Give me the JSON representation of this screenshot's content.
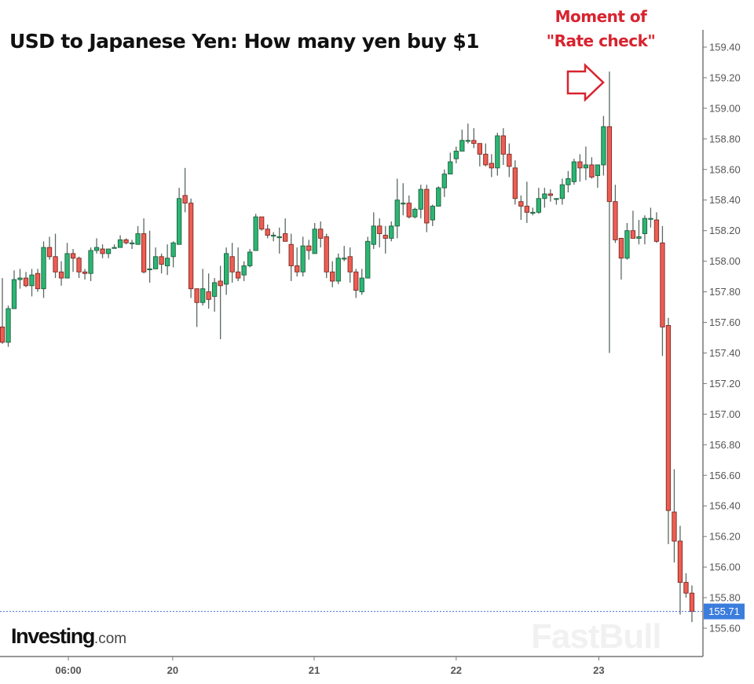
{
  "chart_data": {
    "type": "candlestick",
    "title": "USD to Japanese Yen: How many yen buy $1",
    "annotation": {
      "line1": "Moment of",
      "line2": "\"Rate check\"",
      "candle_index": 103
    },
    "source_logo": {
      "brand": "Investing",
      "suffix": ".com"
    },
    "watermark": "FastBull",
    "ylim": [
      155.42,
      159.51
    ],
    "y_ticks": [
      "159.40",
      "159.20",
      "159.00",
      "158.80",
      "158.60",
      "158.40",
      "158.20",
      "158.00",
      "157.80",
      "157.60",
      "157.40",
      "157.20",
      "157.00",
      "156.80",
      "156.60",
      "156.40",
      "156.20",
      "156.00",
      "155.80",
      "155.60"
    ],
    "x_ticks": [
      {
        "label": "06:00",
        "index": 11.2
      },
      {
        "label": "20",
        "index": 28.9
      },
      {
        "label": "21",
        "index": 52.9
      },
      {
        "label": "22",
        "index": 77
      },
      {
        "label": "23",
        "index": 101.2
      }
    ],
    "last_price": "155.71",
    "colors": {
      "up": "#2bb673",
      "down": "#ee5d52",
      "last_price_bg": "#3b7ddd",
      "annotation": "#d8232f"
    },
    "ohlc_format": "[open, high, low, close]",
    "candles": [
      [
        157.57,
        157.89,
        157.46,
        157.47
      ],
      [
        157.47,
        157.71,
        157.44,
        157.69
      ],
      [
        157.69,
        157.94,
        157.69,
        157.88
      ],
      [
        157.88,
        157.95,
        157.82,
        157.89
      ],
      [
        157.89,
        157.93,
        157.83,
        157.84
      ],
      [
        157.84,
        157.95,
        157.77,
        157.91
      ],
      [
        157.92,
        157.95,
        157.8,
        157.82
      ],
      [
        157.82,
        158.13,
        157.76,
        158.09
      ],
      [
        158.09,
        158.16,
        158.01,
        158.03
      ],
      [
        158.03,
        158.18,
        157.89,
        157.93
      ],
      [
        157.93,
        158.0,
        157.84,
        157.89
      ],
      [
        157.89,
        158.12,
        157.89,
        158.05
      ],
      [
        158.05,
        158.08,
        157.93,
        158.02
      ],
      [
        158.02,
        158.03,
        157.89,
        157.93
      ],
      [
        157.93,
        157.95,
        157.88,
        157.92
      ],
      [
        157.92,
        158.09,
        157.87,
        158.07
      ],
      [
        158.07,
        158.15,
        158.05,
        158.09
      ],
      [
        158.08,
        158.11,
        158.02,
        158.05
      ],
      [
        158.05,
        158.08,
        158.02,
        158.08
      ],
      [
        158.09,
        158.11,
        158.09,
        158.09
      ],
      [
        158.09,
        158.17,
        158.09,
        158.14
      ],
      [
        158.14,
        158.15,
        158.11,
        158.12
      ],
      [
        158.12,
        158.14,
        158.08,
        158.12
      ],
      [
        158.11,
        158.23,
        158.11,
        158.18
      ],
      [
        158.18,
        158.28,
        157.92,
        157.93
      ],
      [
        157.95,
        158.2,
        157.86,
        157.95
      ],
      [
        157.95,
        158.09,
        157.95,
        158.03
      ],
      [
        158.03,
        158.05,
        157.92,
        157.98
      ],
      [
        157.97,
        158.11,
        157.91,
        158.02
      ],
      [
        158.03,
        158.13,
        157.96,
        158.12
      ],
      [
        158.11,
        158.48,
        158.11,
        158.41
      ],
      [
        158.43,
        158.61,
        158.32,
        158.38
      ],
      [
        158.38,
        158.41,
        157.76,
        157.82
      ],
      [
        157.82,
        157.82,
        157.57,
        157.73
      ],
      [
        157.73,
        157.95,
        157.71,
        157.82
      ],
      [
        157.8,
        157.92,
        157.69,
        157.75
      ],
      [
        157.77,
        157.89,
        157.67,
        157.86
      ],
      [
        157.87,
        157.97,
        157.49,
        157.84
      ],
      [
        157.85,
        158.09,
        157.78,
        158.05
      ],
      [
        158.03,
        158.12,
        157.86,
        157.93
      ],
      [
        157.93,
        158.09,
        157.87,
        157.89
      ],
      [
        157.91,
        158.0,
        157.87,
        157.97
      ],
      [
        157.97,
        158.08,
        157.96,
        158.06
      ],
      [
        158.07,
        158.31,
        158.07,
        158.29
      ],
      [
        158.29,
        158.29,
        158.2,
        158.21
      ],
      [
        158.21,
        158.24,
        158.15,
        158.17
      ],
      [
        158.17,
        158.19,
        158.13,
        158.17
      ],
      [
        158.16,
        158.22,
        158.05,
        158.16
      ],
      [
        158.18,
        158.28,
        158.13,
        158.13
      ],
      [
        158.11,
        158.18,
        157.87,
        157.97
      ],
      [
        157.97,
        158.09,
        157.9,
        157.93
      ],
      [
        157.93,
        158.16,
        157.9,
        158.1
      ],
      [
        158.1,
        158.14,
        158.01,
        158.07
      ],
      [
        158.05,
        158.25,
        158.05,
        158.21
      ],
      [
        158.21,
        158.26,
        158.09,
        158.15
      ],
      [
        158.16,
        158.18,
        157.89,
        157.93
      ],
      [
        157.93,
        158.0,
        157.83,
        157.87
      ],
      [
        157.87,
        158.05,
        157.85,
        158.02
      ],
      [
        158.02,
        158.1,
        158.0,
        158.02
      ],
      [
        158.03,
        158.09,
        157.86,
        157.93
      ],
      [
        157.93,
        157.95,
        157.76,
        157.81
      ],
      [
        157.8,
        157.95,
        157.78,
        157.89
      ],
      [
        157.89,
        158.16,
        157.89,
        158.13
      ],
      [
        158.11,
        158.32,
        158.08,
        158.23
      ],
      [
        158.23,
        158.28,
        158.09,
        158.18
      ],
      [
        158.17,
        158.23,
        158.05,
        158.15
      ],
      [
        158.15,
        158.26,
        158.13,
        158.23
      ],
      [
        158.23,
        158.54,
        158.15,
        158.4
      ],
      [
        158.38,
        158.51,
        158.3,
        158.38
      ],
      [
        158.38,
        158.43,
        158.28,
        158.29
      ],
      [
        158.29,
        158.35,
        158.28,
        158.34
      ],
      [
        158.34,
        158.5,
        158.28,
        158.47
      ],
      [
        158.47,
        158.5,
        158.19,
        158.25
      ],
      [
        158.27,
        158.37,
        158.23,
        158.36
      ],
      [
        158.36,
        158.49,
        158.36,
        158.48
      ],
      [
        158.48,
        158.6,
        158.42,
        158.57
      ],
      [
        158.57,
        158.71,
        158.57,
        158.65
      ],
      [
        158.67,
        158.75,
        158.64,
        158.72
      ],
      [
        158.72,
        158.86,
        158.72,
        158.79
      ],
      [
        158.79,
        158.9,
        158.77,
        158.79
      ],
      [
        158.79,
        158.87,
        158.74,
        158.77
      ],
      [
        158.77,
        158.77,
        158.62,
        158.7
      ],
      [
        158.7,
        158.77,
        158.62,
        158.63
      ],
      [
        158.64,
        158.7,
        158.55,
        158.61
      ],
      [
        158.61,
        158.84,
        158.56,
        158.82
      ],
      [
        158.82,
        158.87,
        158.63,
        158.7
      ],
      [
        158.7,
        158.77,
        158.55,
        158.62
      ],
      [
        158.61,
        158.66,
        158.37,
        158.41
      ],
      [
        158.39,
        158.43,
        158.27,
        158.36
      ],
      [
        158.36,
        158.52,
        158.25,
        158.32
      ],
      [
        158.32,
        158.35,
        158.3,
        158.32
      ],
      [
        158.32,
        158.48,
        158.31,
        158.41
      ],
      [
        158.41,
        158.48,
        158.35,
        158.44
      ],
      [
        158.44,
        158.47,
        158.39,
        158.43
      ],
      [
        158.41,
        158.41,
        158.37,
        158.41
      ],
      [
        158.41,
        158.54,
        158.37,
        158.5
      ],
      [
        158.5,
        158.59,
        158.45,
        158.54
      ],
      [
        158.52,
        158.67,
        158.5,
        158.65
      ],
      [
        158.65,
        158.7,
        158.52,
        158.61
      ],
      [
        158.61,
        158.75,
        158.53,
        158.63
      ],
      [
        158.63,
        158.68,
        158.54,
        158.55
      ],
      [
        158.56,
        158.63,
        158.48,
        158.63
      ],
      [
        158.63,
        158.95,
        158.56,
        158.88
      ],
      [
        158.88,
        159.24,
        157.4,
        158.39
      ],
      [
        158.39,
        158.5,
        158.12,
        158.14
      ],
      [
        158.15,
        158.15,
        157.88,
        158.02
      ],
      [
        158.02,
        158.25,
        158.01,
        158.2
      ],
      [
        158.2,
        158.33,
        158.15,
        158.15
      ],
      [
        158.15,
        158.27,
        158.11,
        158.16
      ],
      [
        158.18,
        158.3,
        158.11,
        158.28
      ],
      [
        158.28,
        158.35,
        158.22,
        158.28
      ],
      [
        158.27,
        158.32,
        158.12,
        158.13
      ],
      [
        158.12,
        158.23,
        157.38,
        157.57
      ],
      [
        157.58,
        157.63,
        156.15,
        156.37
      ],
      [
        156.36,
        156.64,
        156.03,
        156.17
      ],
      [
        156.17,
        156.27,
        155.69,
        155.9
      ],
      [
        155.9,
        155.96,
        155.8,
        155.83
      ],
      [
        155.83,
        155.88,
        155.64,
        155.71
      ]
    ]
  }
}
